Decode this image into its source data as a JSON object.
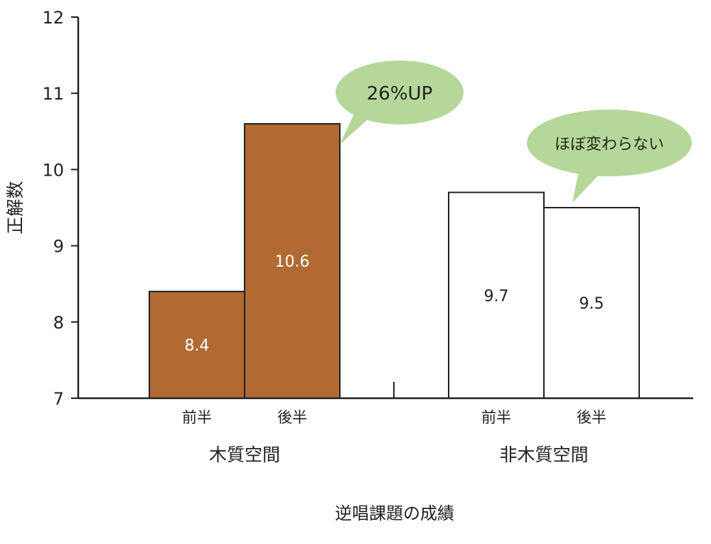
{
  "chart_data": {
    "type": "bar",
    "title": "",
    "xlabel": "逆唱課題の成績",
    "ylabel": "正解数",
    "ylim": [
      7,
      12
    ],
    "yticks": [
      7,
      8,
      9,
      10,
      11,
      12
    ],
    "groups": [
      {
        "name": "木質空間",
        "color": "#b06a32",
        "label_color": "#ffffff",
        "bars": [
          {
            "category": "前半",
            "value": 8.4,
            "value_label": "8.4"
          },
          {
            "category": "後半",
            "value": 10.6,
            "value_label": "10.6"
          }
        ],
        "callout": "26%UP"
      },
      {
        "name": "非木質空間",
        "color": "#ffffff",
        "label_color": "#222222",
        "bars": [
          {
            "category": "前半",
            "value": 9.7,
            "value_label": "9.7"
          },
          {
            "category": "後半",
            "value": 9.5,
            "value_label": "9.5"
          }
        ],
        "callout": "ほぼ変わらない"
      }
    ],
    "callout_color": "#b5d89a",
    "grid": false,
    "legend": "none"
  }
}
